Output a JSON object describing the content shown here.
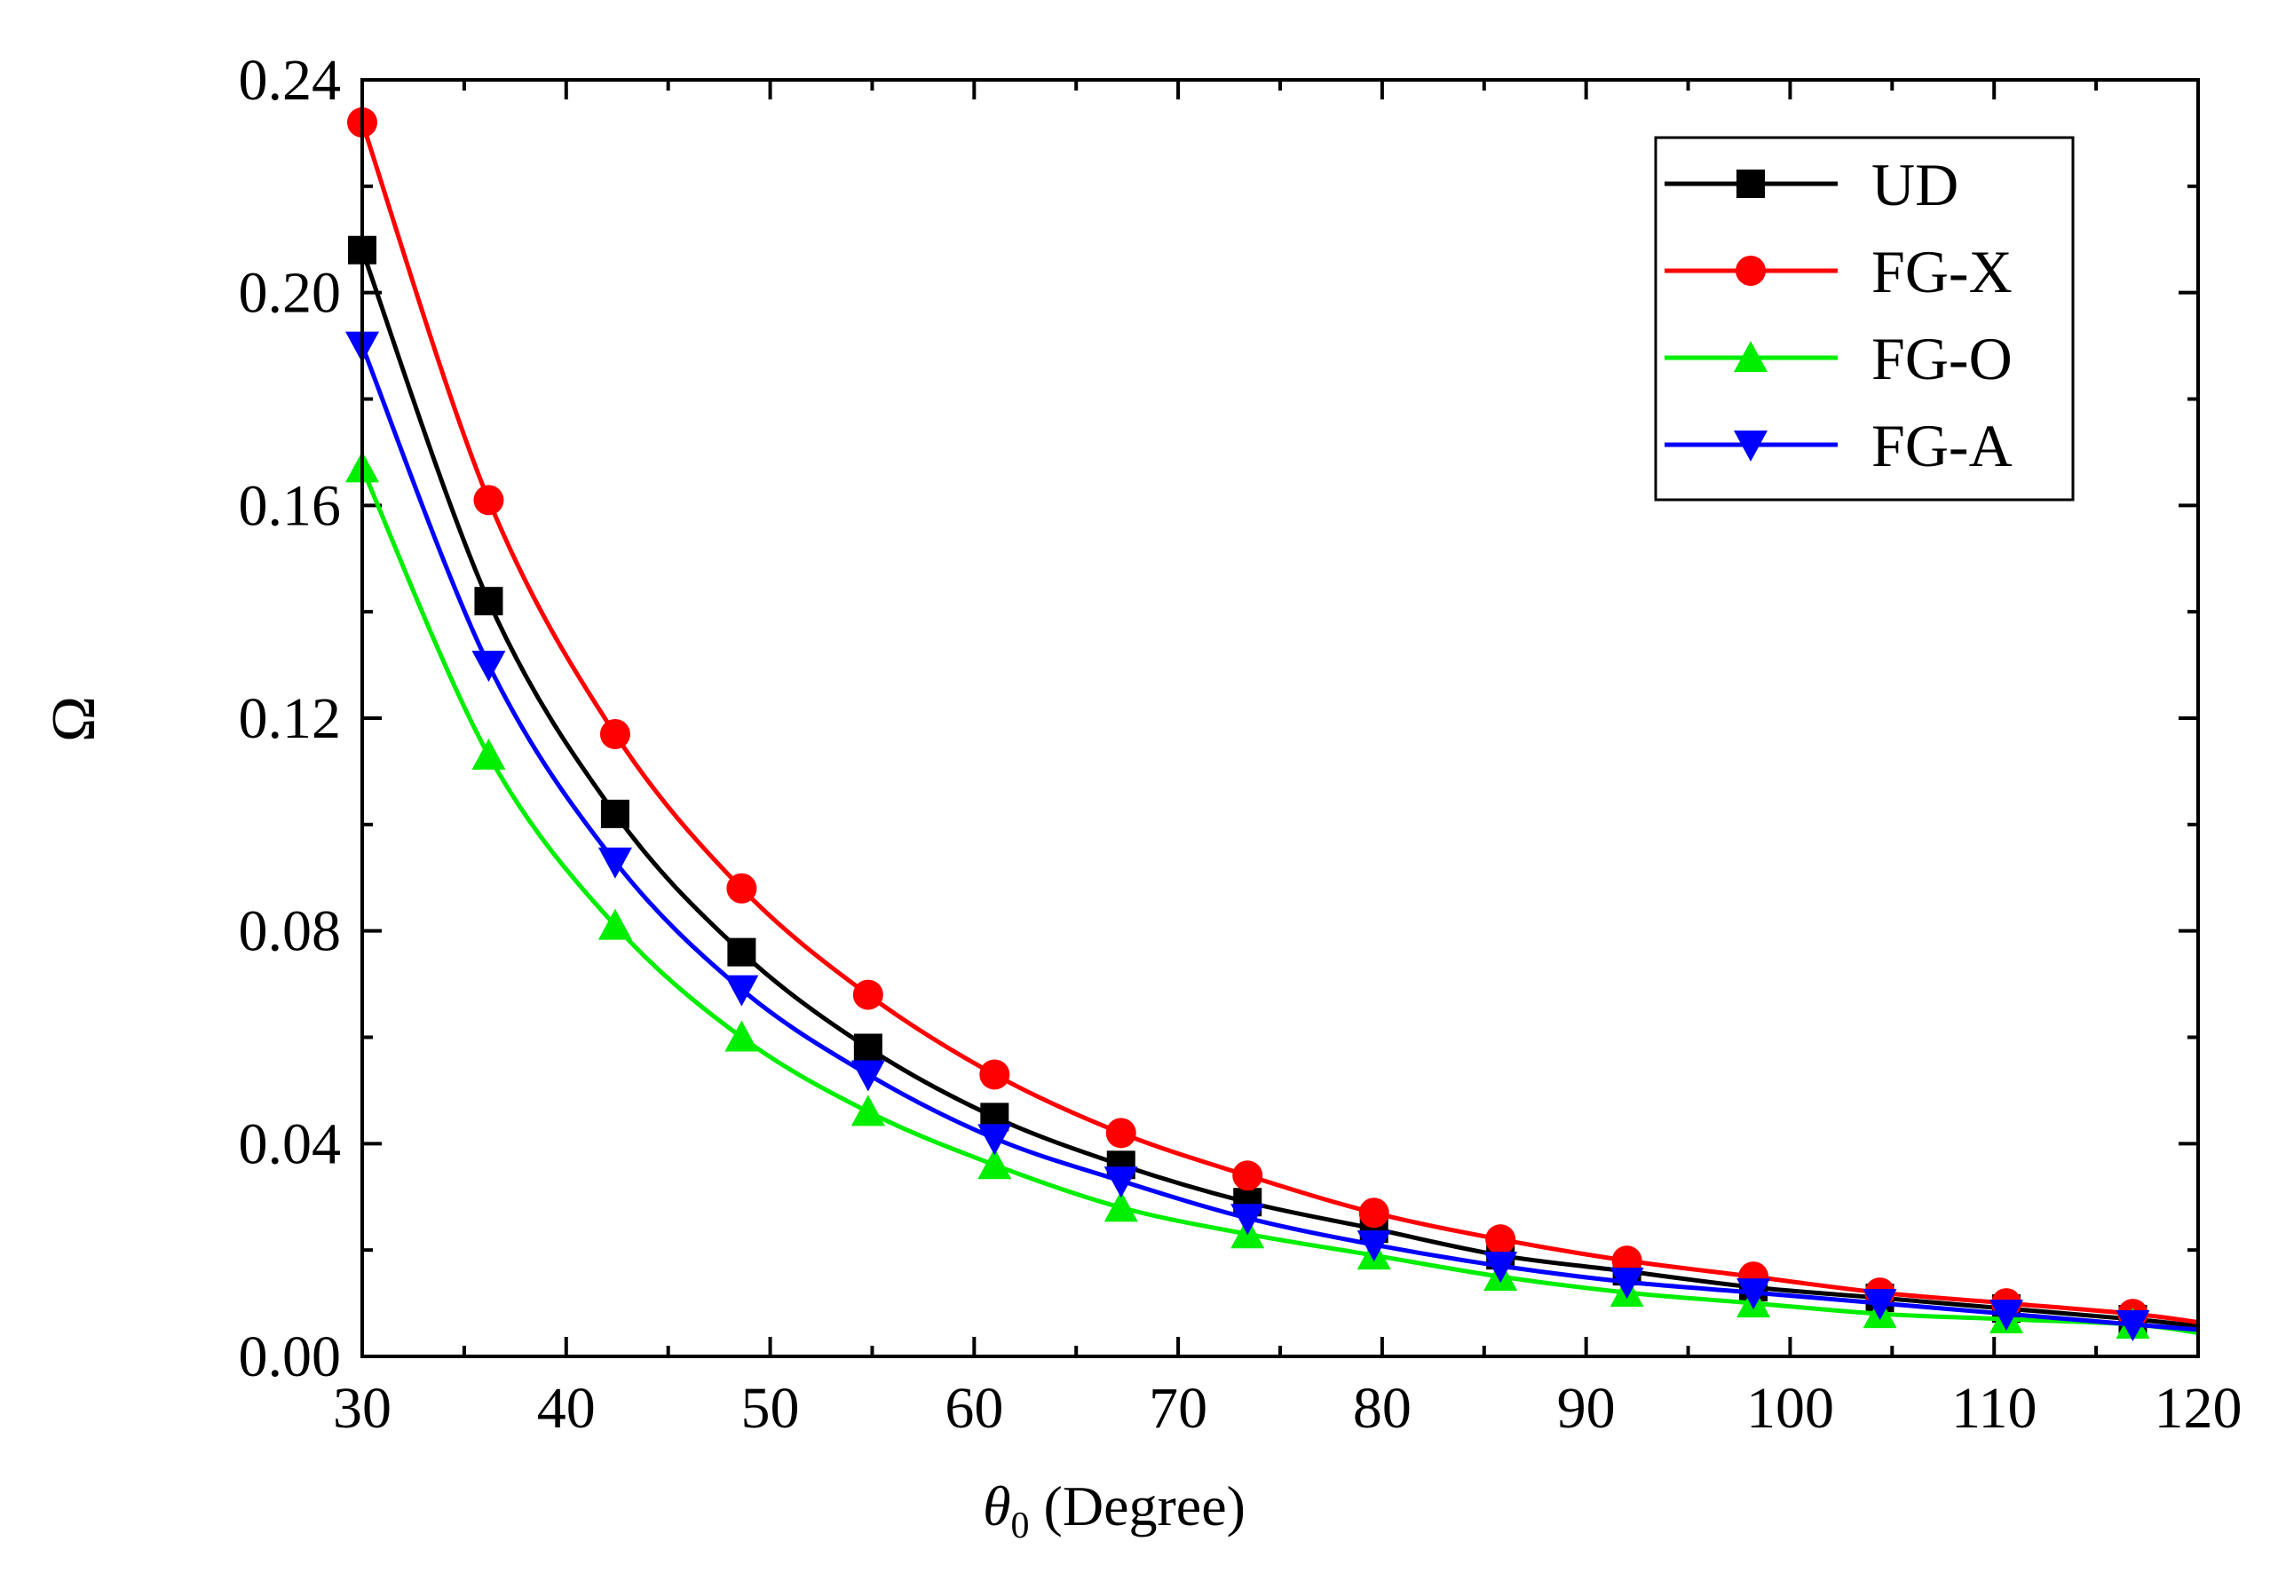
{
  "chart_data": {
    "type": "line",
    "title": "",
    "xlabel_symbol": "θ",
    "xlabel_subscript": "0",
    "xlabel_text": " (Degree)",
    "ylabel": "Ω",
    "xlim": [
      30,
      120
    ],
    "ylim": [
      0,
      0.24
    ],
    "xticks": [
      30,
      40,
      50,
      60,
      70,
      80,
      90,
      100,
      110,
      120
    ],
    "xtick_labels": [
      "30",
      "40",
      "50",
      "60",
      "70",
      "80",
      "90",
      "100",
      "110",
      "120"
    ],
    "yticks": [
      0,
      0.04,
      0.08,
      0.12,
      0.16,
      0.2,
      0.24
    ],
    "ytick_labels": [
      "0.00",
      "0.04",
      "0.08",
      "0.12",
      "0.16",
      "0.20",
      "0.24"
    ],
    "legend_position": "top-right",
    "x": [
      30,
      36.2,
      42.4,
      48.6,
      54.8,
      61.0,
      67.2,
      73.4,
      79.6,
      85.8,
      92.0,
      98.2,
      104.4,
      110.6,
      116.8
    ],
    "series": [
      {
        "name": "UD",
        "color": "#000000",
        "marker": "square",
        "values": [
          0.208,
          0.142,
          0.102,
          0.076,
          0.058,
          0.045,
          0.036,
          0.029,
          0.024,
          0.019,
          0.016,
          0.013,
          0.011,
          0.009,
          0.007
        ]
      },
      {
        "name": "FG-X",
        "color": "#ff0000",
        "marker": "circle",
        "values": [
          0.232,
          0.161,
          0.117,
          0.088,
          0.068,
          0.053,
          0.042,
          0.034,
          0.027,
          0.022,
          0.018,
          0.015,
          0.012,
          0.01,
          0.008
        ]
      },
      {
        "name": "FG-O",
        "color": "#00ee00",
        "marker": "triangle-up",
        "values": [
          0.167,
          0.113,
          0.081,
          0.06,
          0.046,
          0.036,
          0.028,
          0.023,
          0.019,
          0.015,
          0.012,
          0.01,
          0.008,
          0.007,
          0.006
        ]
      },
      {
        "name": "FG-A",
        "color": "#0000ff",
        "marker": "triangle-down",
        "values": [
          0.19,
          0.13,
          0.093,
          0.069,
          0.053,
          0.041,
          0.033,
          0.026,
          0.021,
          0.017,
          0.014,
          0.012,
          0.01,
          0.008,
          0.006
        ]
      }
    ]
  }
}
